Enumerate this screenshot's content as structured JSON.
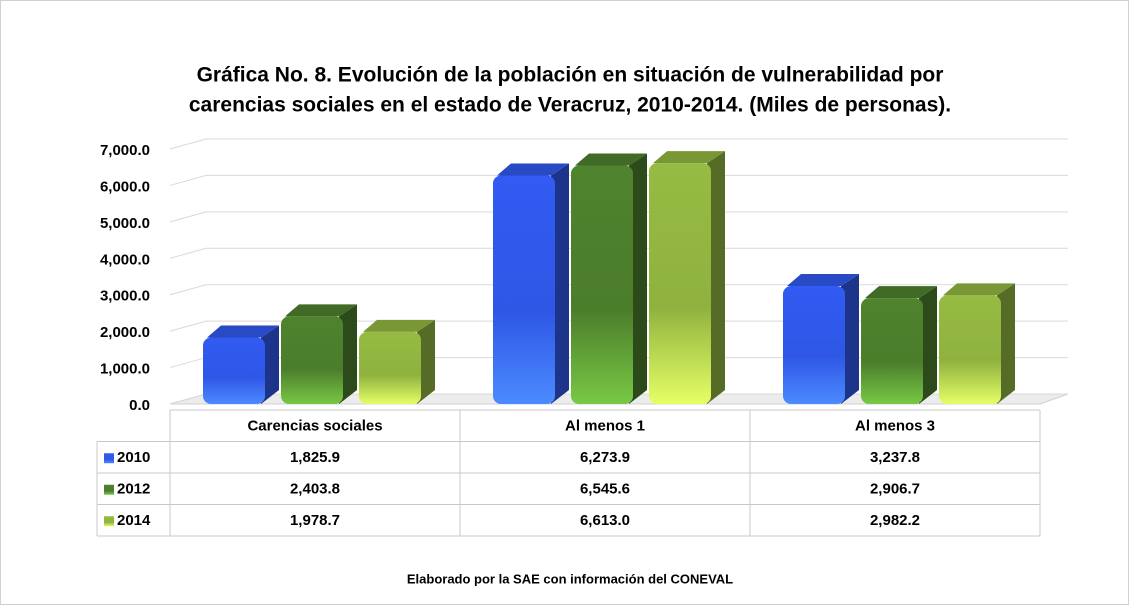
{
  "chart_data": {
    "type": "bar",
    "title": "Gráfica No. 8. Evolución de la población en situación de vulnerabilidad por",
    "subtitle": "carencias sociales en el estado de Veracruz, 2010-2014. (Miles de personas).",
    "categories": [
      "Carencias sociales",
      "Al menos 1",
      "Al menos 3"
    ],
    "series": [
      {
        "name": "2010",
        "color": "#2f57e6",
        "values": [
          1825.9,
          6273.9,
          3237.8
        ],
        "value_labels": [
          "1,825.9",
          "6,273.9",
          "3,237.8"
        ]
      },
      {
        "name": "2012",
        "color": "#4b7d2b",
        "values": [
          2403.8,
          6545.6,
          2906.7
        ],
        "value_labels": [
          "2,403.8",
          "6,545.6",
          "2,906.7"
        ]
      },
      {
        "name": "2014",
        "color": "#8fb23f",
        "values": [
          1978.7,
          6613.0,
          2982.2
        ],
        "value_labels": [
          "1,978.7",
          "6,613.0",
          "2,982.2"
        ]
      }
    ],
    "ylim": [
      0,
      7000
    ],
    "yticks": [
      {
        "value": 0,
        "label": "0.0"
      },
      {
        "value": 1000,
        "label": "1,000.0"
      },
      {
        "value": 2000,
        "label": "2,000.0"
      },
      {
        "value": 3000,
        "label": "3,000.0"
      },
      {
        "value": 4000,
        "label": "4,000.0"
      },
      {
        "value": 5000,
        "label": "5,000.0"
      },
      {
        "value": 6000,
        "label": "6,000.0"
      },
      {
        "value": 7000,
        "label": "7,000.0"
      }
    ],
    "grid": true,
    "source": "Elaborado por la SAE con información del CONEVAL"
  }
}
